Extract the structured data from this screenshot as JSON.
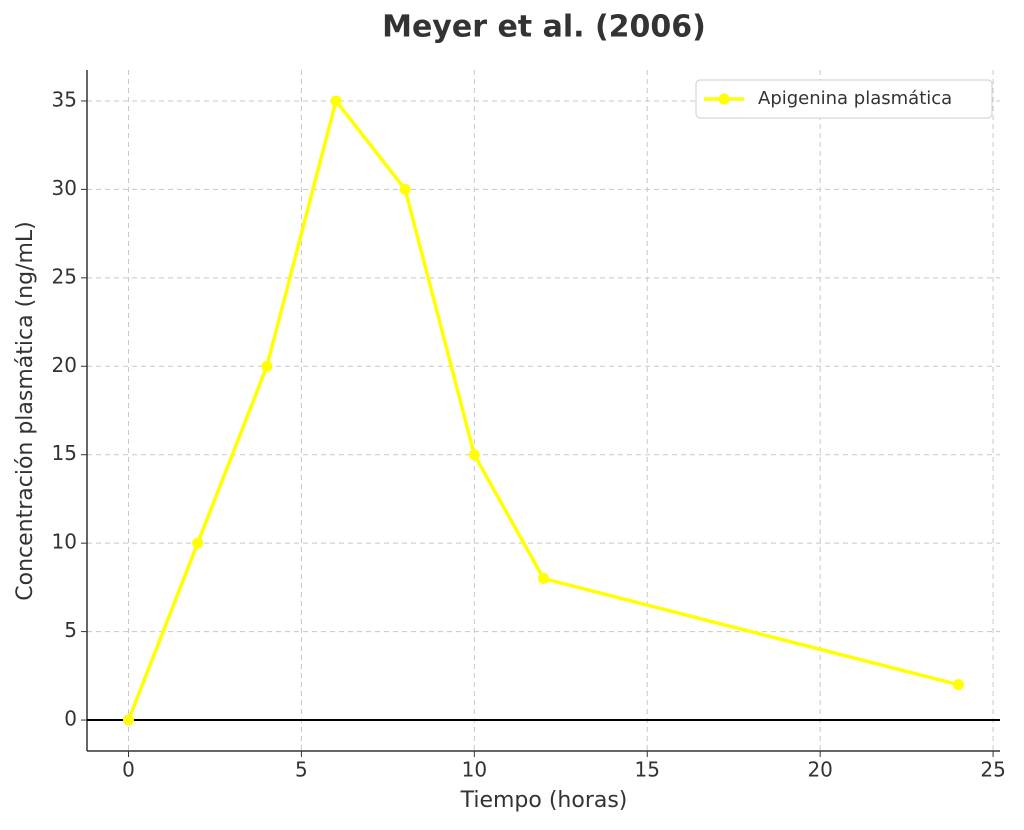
{
  "chart_data": {
    "type": "line",
    "title": "Meyer et al. (2006)",
    "x_label": "Tiempo (horas)",
    "y_label": "Concentración plasmática (ng/mL)",
    "x": [
      0,
      2,
      4,
      6,
      8,
      10,
      12,
      24
    ],
    "series": [
      {
        "name": "Apigenina plasmática",
        "color": "#ffff00",
        "values": [
          0,
          10,
          20,
          35,
          30,
          15,
          8,
          2
        ]
      }
    ],
    "xlim": [
      -1.2,
      25.2
    ],
    "xticks": [
      0,
      5,
      10,
      15,
      20,
      25
    ],
    "ylim": [
      -1.75,
      36.75
    ],
    "yticks": [
      0,
      5,
      10,
      15,
      20,
      25,
      30,
      35
    ],
    "hline": 0,
    "grid": true,
    "legend": "upper right"
  }
}
